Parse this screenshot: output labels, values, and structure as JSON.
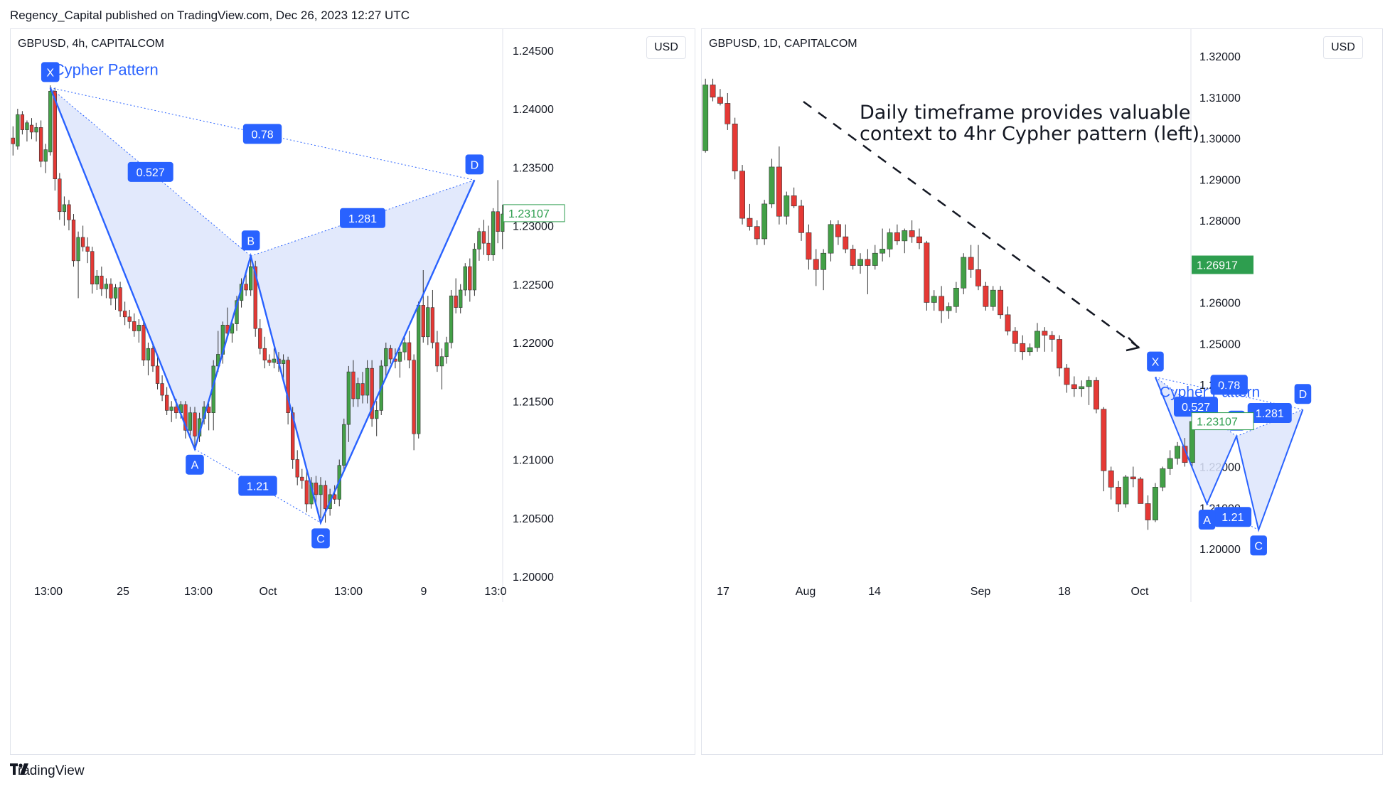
{
  "header": {
    "text": "Regency_Capital published on TradingView.com, Dec 26, 2023 12:27 UTC"
  },
  "footer": {
    "logo_text": "TradingView"
  },
  "colors": {
    "up": "#43a047",
    "down": "#e53935",
    "pattern_line": "#2962ff",
    "pattern_fill": "#dde5fb",
    "label_bg": "#2962ff",
    "price_tag": "#2e9e4f"
  },
  "chart_data": [
    {
      "type": "candlestick",
      "symbol": "GBPUSD, 4h, CAPITALCOM",
      "currency": "USD",
      "ylim": [
        1.2,
        1.243
      ],
      "y_ticks": [
        "1.20000",
        "1.20500",
        "1.21000",
        "1.21500",
        "1.22000",
        "1.22500",
        "1.23000",
        "1.23500",
        "1.24000",
        "1.24500"
      ],
      "x_ticks": [
        "13:00",
        "25",
        "13:00",
        "Oct",
        "13:00",
        "9",
        "13:0"
      ],
      "price_tag": "1.23107",
      "pattern": {
        "title": "Cypher Pattern",
        "points": [
          {
            "name": "X",
            "bar": 8,
            "price": 1.2418
          },
          {
            "name": "A",
            "bar": 39,
            "price": 1.2109
          },
          {
            "name": "B",
            "bar": 51,
            "price": 1.2274
          },
          {
            "name": "C",
            "bar": 66,
            "price": 1.2046
          },
          {
            "name": "D",
            "bar": 99,
            "price": 1.2339
          }
        ],
        "ratios": [
          {
            "label": "0.527",
            "from": "X",
            "to": "B"
          },
          {
            "label": "0.78",
            "from": "X",
            "to": "D"
          },
          {
            "label": "1.281",
            "from": "B",
            "to": "D"
          },
          {
            "label": "1.21",
            "from": "A",
            "to": "C"
          }
        ]
      },
      "candles": [
        [
          1.2375,
          1.2385,
          1.236,
          1.237
        ],
        [
          1.2368,
          1.24,
          1.2365,
          1.2395
        ],
        [
          1.2395,
          1.2398,
          1.2378,
          1.2382
        ],
        [
          1.2382,
          1.239,
          1.2372,
          1.2388
        ],
        [
          1.2386,
          1.2392,
          1.2374,
          1.238
        ],
        [
          1.238,
          1.2388,
          1.2372,
          1.2384
        ],
        [
          1.2384,
          1.239,
          1.235,
          1.2355
        ],
        [
          1.2355,
          1.237,
          1.2345,
          1.2365
        ],
        [
          1.2363,
          1.242,
          1.236,
          1.2415
        ],
        [
          1.2415,
          1.2418,
          1.233,
          1.234
        ],
        [
          1.234,
          1.2345,
          1.2305,
          1.2312
        ],
        [
          1.2312,
          1.2325,
          1.23,
          1.2318
        ],
        [
          1.2318,
          1.2322,
          1.2296,
          1.2305
        ],
        [
          1.2305,
          1.231,
          1.2265,
          1.227
        ],
        [
          1.227,
          1.2295,
          1.2238,
          1.229
        ],
        [
          1.229,
          1.23,
          1.2278,
          1.2282
        ],
        [
          1.2282,
          1.229,
          1.2268,
          1.2278
        ],
        [
          1.2278,
          1.2282,
          1.2242,
          1.225
        ],
        [
          1.225,
          1.2262,
          1.2245,
          1.2257
        ],
        [
          1.2257,
          1.2265,
          1.224,
          1.2246
        ],
        [
          1.2246,
          1.2255,
          1.2238,
          1.225
        ],
        [
          1.225,
          1.2255,
          1.2232,
          1.2238
        ],
        [
          1.2238,
          1.225,
          1.2228,
          1.2247
        ],
        [
          1.2247,
          1.2252,
          1.2222,
          1.2227
        ],
        [
          1.2227,
          1.2235,
          1.2215,
          1.2222
        ],
        [
          1.2222,
          1.2228,
          1.2212,
          1.2218
        ],
        [
          1.2218,
          1.2225,
          1.2205,
          1.221
        ],
        [
          1.221,
          1.222,
          1.22,
          1.2215
        ],
        [
          1.2215,
          1.222,
          1.218,
          1.2185
        ],
        [
          1.2185,
          1.22,
          1.2172,
          1.2195
        ],
        [
          1.2195,
          1.2198,
          1.2175,
          1.218
        ],
        [
          1.218,
          1.2188,
          1.216,
          1.2165
        ],
        [
          1.2165,
          1.2172,
          1.215,
          1.2155
        ],
        [
          1.2155,
          1.2162,
          1.2138,
          1.2142
        ],
        [
          1.2142,
          1.215,
          1.2132,
          1.2145
        ],
        [
          1.2145,
          1.2152,
          1.2135,
          1.214
        ],
        [
          1.214,
          1.215,
          1.2135,
          1.2147
        ],
        [
          1.2147,
          1.215,
          1.2118,
          1.2125
        ],
        [
          1.2125,
          1.2145,
          1.2118,
          1.214
        ],
        [
          1.214,
          1.2145,
          1.2109,
          1.212
        ],
        [
          1.212,
          1.214,
          1.2115,
          1.2135
        ],
        [
          1.2135,
          1.215,
          1.213,
          1.2145
        ],
        [
          1.2145,
          1.2148,
          1.2125,
          1.214
        ],
        [
          1.214,
          1.2185,
          1.2125,
          1.218
        ],
        [
          1.218,
          1.221,
          1.2175,
          1.219
        ],
        [
          1.219,
          1.2218,
          1.2182,
          1.2215
        ],
        [
          1.2215,
          1.223,
          1.2205,
          1.2208
        ],
        [
          1.2208,
          1.222,
          1.22,
          1.2216
        ],
        [
          1.2216,
          1.224,
          1.221,
          1.2236
        ],
        [
          1.2236,
          1.2255,
          1.223,
          1.225
        ],
        [
          1.225,
          1.2262,
          1.224,
          1.2245
        ],
        [
          1.2245,
          1.2274,
          1.224,
          1.2265
        ],
        [
          1.2265,
          1.227,
          1.2205,
          1.2212
        ],
        [
          1.2212,
          1.222,
          1.219,
          1.2195
        ],
        [
          1.2195,
          1.2205,
          1.2178,
          1.2185
        ],
        [
          1.2185,
          1.219,
          1.218,
          1.2183
        ],
        [
          1.2183,
          1.2195,
          1.2178,
          1.2186
        ],
        [
          1.2186,
          1.2192,
          1.2175,
          1.2182
        ],
        [
          1.2182,
          1.219,
          1.217,
          1.2185
        ],
        [
          1.2185,
          1.2188,
          1.213,
          1.214
        ],
        [
          1.214,
          1.2145,
          1.2092,
          1.21
        ],
        [
          1.21,
          1.2108,
          1.2078,
          1.2085
        ],
        [
          1.2085,
          1.2092,
          1.2075,
          1.2082
        ],
        [
          1.2082,
          1.209,
          1.2055,
          1.2062
        ],
        [
          1.2062,
          1.2085,
          1.2058,
          1.208
        ],
        [
          1.208,
          1.2086,
          1.2062,
          1.207
        ],
        [
          1.207,
          1.2085,
          1.205,
          1.2078
        ],
        [
          1.2078,
          1.2082,
          1.2046,
          1.2058
        ],
        [
          1.2058,
          1.2075,
          1.2052,
          1.207
        ],
        [
          1.207,
          1.2078,
          1.2062,
          1.2066
        ],
        [
          1.2066,
          1.21,
          1.206,
          1.2095
        ],
        [
          1.2095,
          1.2135,
          1.209,
          1.213
        ],
        [
          1.213,
          1.218,
          1.2115,
          1.2175
        ],
        [
          1.2175,
          1.2185,
          1.2145,
          1.2152
        ],
        [
          1.2152,
          1.217,
          1.2145,
          1.2165
        ],
        [
          1.2165,
          1.2175,
          1.2148,
          1.2155
        ],
        [
          1.2155,
          1.2185,
          1.2148,
          1.2178
        ],
        [
          1.2178,
          1.2185,
          1.2128,
          1.2135
        ],
        [
          1.2135,
          1.215,
          1.212,
          1.2142
        ],
        [
          1.2142,
          1.2185,
          1.2138,
          1.218
        ],
        [
          1.218,
          1.22,
          1.217,
          1.2195
        ],
        [
          1.2195,
          1.2198,
          1.2182,
          1.2186
        ],
        [
          1.2186,
          1.2195,
          1.2178,
          1.2184
        ],
        [
          1.2184,
          1.2195,
          1.217,
          1.2192
        ],
        [
          1.2192,
          1.2205,
          1.2185,
          1.22
        ],
        [
          1.22,
          1.221,
          1.2178,
          1.2185
        ],
        [
          1.2185,
          1.219,
          1.2108,
          1.2122
        ],
        [
          1.2122,
          1.2235,
          1.2118,
          1.2232
        ],
        [
          1.2232,
          1.2262,
          1.22,
          1.2205
        ],
        [
          1.2205,
          1.224,
          1.2198,
          1.223
        ],
        [
          1.223,
          1.2245,
          1.2195,
          1.22
        ],
        [
          1.22,
          1.221,
          1.2175,
          1.218
        ],
        [
          1.218,
          1.2195,
          1.216,
          1.2188
        ],
        [
          1.2188,
          1.2205,
          1.2182,
          1.22
        ],
        [
          1.22,
          1.2245,
          1.2195,
          1.224
        ],
        [
          1.224,
          1.2255,
          1.2225,
          1.223
        ],
        [
          1.223,
          1.225,
          1.2225,
          1.2245
        ],
        [
          1.2245,
          1.2268,
          1.224,
          1.2265
        ],
        [
          1.2265,
          1.2272,
          1.2235,
          1.2245
        ],
        [
          1.2245,
          1.2285,
          1.224,
          1.228
        ],
        [
          1.228,
          1.2298,
          1.227,
          1.2295
        ],
        [
          1.2295,
          1.2305,
          1.2275,
          1.2285
        ],
        [
          1.2285,
          1.23,
          1.227,
          1.2275
        ],
        [
          1.2275,
          1.2315,
          1.227,
          1.2312
        ],
        [
          1.2312,
          1.2339,
          1.2285,
          1.2295
        ],
        [
          1.2295,
          1.2318,
          1.228,
          1.231
        ]
      ]
    },
    {
      "type": "candlestick",
      "symbol": "GBPUSD, 1D, CAPITALCOM",
      "currency": "USD",
      "ylim": [
        1.195,
        1.325
      ],
      "y_ticks": [
        "1.20000",
        "1.21000",
        "1.22000",
        "1.23000",
        "1.24000",
        "1.25000",
        "1.26000",
        "1.27000",
        "1.28000",
        "1.29000",
        "1.30000",
        "1.31000",
        "1.32000"
      ],
      "x_ticks": [
        "17",
        "Aug",
        "14",
        "Sep",
        "18",
        "Oct"
      ],
      "price_tags": [
        "1.26917",
        "1.23107"
      ],
      "annotation": "Daily timeframe provides valuable\ncontext to 4hr Cypher pattern (left)",
      "pattern": {
        "title": "Cypher Pattern",
        "points": [
          {
            "name": "X",
            "bar": 61,
            "price": 1.2418
          },
          {
            "name": "A",
            "bar": 68,
            "price": 1.2109
          },
          {
            "name": "B",
            "bar": 72,
            "price": 1.2274
          },
          {
            "name": "C",
            "bar": 75,
            "price": 1.2046
          },
          {
            "name": "D",
            "bar": 81,
            "price": 1.2339
          }
        ],
        "ratios": [
          {
            "label": "0.527",
            "from": "X",
            "to": "B"
          },
          {
            "label": "0.78",
            "from": "X",
            "to": "D"
          },
          {
            "label": "1.281",
            "from": "B",
            "to": "D"
          },
          {
            "label": "1.21",
            "from": "A",
            "to": "C"
          }
        ]
      },
      "candles": [
        [
          1.297,
          1.3145,
          1.2965,
          1.313
        ],
        [
          1.313,
          1.3145,
          1.309,
          1.31
        ],
        [
          1.31,
          1.312,
          1.308,
          1.3085
        ],
        [
          1.3085,
          1.311,
          1.302,
          1.3035
        ],
        [
          1.3035,
          1.305,
          1.29,
          1.292
        ],
        [
          1.292,
          1.2935,
          1.279,
          1.2805
        ],
        [
          1.2805,
          1.284,
          1.2775,
          1.2785
        ],
        [
          1.2785,
          1.28,
          1.274,
          1.2755
        ],
        [
          1.2755,
          1.285,
          1.274,
          1.284
        ],
        [
          1.284,
          1.295,
          1.283,
          1.293
        ],
        [
          1.293,
          1.298,
          1.279,
          1.281
        ],
        [
          1.281,
          1.287,
          1.279,
          1.286
        ],
        [
          1.286,
          1.288,
          1.283,
          1.2835
        ],
        [
          1.2835,
          1.285,
          1.275,
          1.277
        ],
        [
          1.277,
          1.279,
          1.268,
          1.2705
        ],
        [
          1.2705,
          1.273,
          1.264,
          1.268
        ],
        [
          1.268,
          1.273,
          1.263,
          1.272
        ],
        [
          1.272,
          1.28,
          1.27,
          1.279
        ],
        [
          1.279,
          1.28,
          1.274,
          1.276
        ],
        [
          1.276,
          1.279,
          1.272,
          1.273
        ],
        [
          1.273,
          1.274,
          1.268,
          1.269
        ],
        [
          1.269,
          1.272,
          1.267,
          1.2705
        ],
        [
          1.2705,
          1.273,
          1.262,
          1.269
        ],
        [
          1.269,
          1.274,
          1.268,
          1.272
        ],
        [
          1.272,
          1.278,
          1.27,
          1.273
        ],
        [
          1.273,
          1.278,
          1.271,
          1.277
        ],
        [
          1.277,
          1.279,
          1.274,
          1.275
        ],
        [
          1.275,
          1.278,
          1.272,
          1.2775
        ],
        [
          1.2775,
          1.28,
          1.2745,
          1.276
        ],
        [
          1.276,
          1.278,
          1.273,
          1.2745
        ],
        [
          1.2745,
          1.275,
          1.258,
          1.26
        ],
        [
          1.26,
          1.263,
          1.258,
          1.2615
        ],
        [
          1.2615,
          1.264,
          1.255,
          1.258
        ],
        [
          1.258,
          1.26,
          1.256,
          1.259
        ],
        [
          1.259,
          1.265,
          1.2575,
          1.2635
        ],
        [
          1.2635,
          1.272,
          1.262,
          1.271
        ],
        [
          1.271,
          1.274,
          1.266,
          1.268
        ],
        [
          1.268,
          1.274,
          1.263,
          1.264
        ],
        [
          1.264,
          1.265,
          1.258,
          1.259
        ],
        [
          1.259,
          1.264,
          1.258,
          1.263
        ],
        [
          1.263,
          1.264,
          1.256,
          1.257
        ],
        [
          1.257,
          1.259,
          1.252,
          1.253
        ],
        [
          1.253,
          1.254,
          1.248,
          1.25
        ],
        [
          1.25,
          1.252,
          1.246,
          1.248
        ],
        [
          1.248,
          1.25,
          1.247,
          1.249
        ],
        [
          1.249,
          1.255,
          1.248,
          1.253
        ],
        [
          1.253,
          1.254,
          1.248,
          1.252
        ],
        [
          1.252,
          1.253,
          1.248,
          1.251
        ],
        [
          1.251,
          1.252,
          1.242,
          1.244
        ],
        [
          1.244,
          1.245,
          1.238,
          1.24
        ],
        [
          1.24,
          1.242,
          1.237,
          1.239
        ],
        [
          1.239,
          1.241,
          1.237,
          1.2395
        ],
        [
          1.2395,
          1.242,
          1.235,
          1.241
        ],
        [
          1.241,
          1.2418,
          1.233,
          1.234
        ],
        [
          1.234,
          1.2345,
          1.214,
          1.219
        ],
        [
          1.219,
          1.22,
          1.212,
          1.215
        ],
        [
          1.215,
          1.2165,
          1.209,
          1.2109
        ],
        [
          1.2109,
          1.218,
          1.21,
          1.2175
        ],
        [
          1.2175,
          1.22,
          1.215,
          1.217
        ],
        [
          1.217,
          1.2175,
          1.212,
          1.211
        ],
        [
          1.211,
          1.213,
          1.2046,
          1.207
        ],
        [
          1.207,
          1.216,
          1.2065,
          1.215
        ],
        [
          1.215,
          1.22,
          1.214,
          1.2195
        ],
        [
          1.2195,
          1.224,
          1.218,
          1.222
        ],
        [
          1.222,
          1.226,
          1.2205,
          1.225
        ],
        [
          1.225,
          1.227,
          1.22,
          1.221
        ],
        [
          1.221,
          1.2339,
          1.22,
          1.231
        ]
      ]
    }
  ]
}
